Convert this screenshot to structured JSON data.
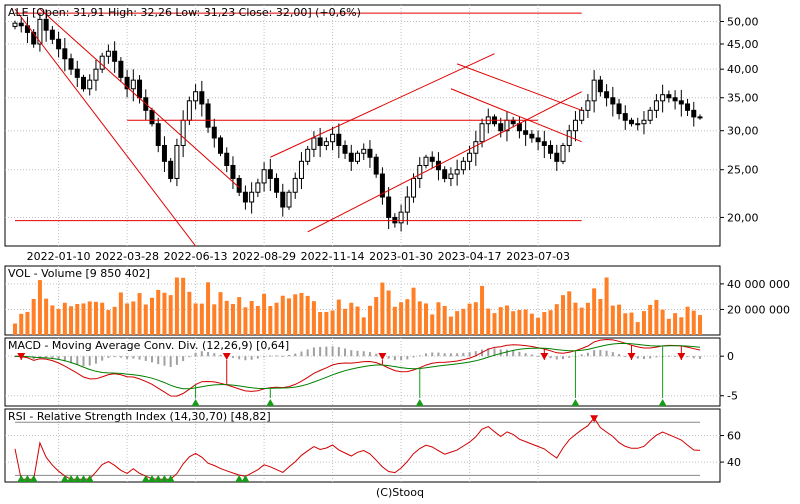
{
  "footer": "(C)Stooq",
  "colors": {
    "frame": "#000000",
    "grid": "#c0c0c0",
    "trend": "#e00000",
    "candle_up": "#ffffff",
    "candle_down": "#000000",
    "volume": "#ff7f27",
    "macd": "#d00000",
    "signal": "#008000",
    "hist": "#a0a0a0",
    "rsi": "#d00000",
    "marker_down": "#e00000",
    "marker_up": "#1a9a1a"
  },
  "chart_data": [
    {
      "type": "candlestick",
      "title": "ALE [Open: 31,91  High: 32,26  Low: 31,23  Close: 32,00] (+0,6%)",
      "x_tick_labels": [
        "2022-01-10",
        "2022-03-28",
        "2022-06-13",
        "2022-08-29",
        "2022-11-14",
        "2023-01-30",
        "2023-04-17",
        "2023-07-03"
      ],
      "y_tick_labels": [
        "50,00",
        "45,00",
        "40,00",
        "35,00",
        "30,00",
        "25,00",
        "20,00"
      ],
      "y_ticks": [
        50,
        45,
        40,
        35,
        30,
        25,
        20
      ],
      "ylim": [
        17.5,
        54
      ],
      "scale": "log",
      "last": {
        "open": 31.91,
        "high": 32.26,
        "low": 31.23,
        "close": 32.0,
        "change_pct": 0.6
      },
      "weekly_closes": [
        49.6,
        49.0,
        47.5,
        45.0,
        50.5,
        48.0,
        46.0,
        44.0,
        42.0,
        40.0,
        38.5,
        36.5,
        38.0,
        40.0,
        42.5,
        43.5,
        41.5,
        38.5,
        36.5,
        38.0,
        35.0,
        33.0,
        31.0,
        28.0,
        26.0,
        24.0,
        28.0,
        31.5,
        34.5,
        36.0,
        34.0,
        30.5,
        29.0,
        27.0,
        25.5,
        24.0,
        22.5,
        21.5,
        22.5,
        23.5,
        25.0,
        24.0,
        22.5,
        21.0,
        22.5,
        24.0,
        26.0,
        27.5,
        29.0,
        28.0,
        28.5,
        29.5,
        28.0,
        27.0,
        26.0,
        27.0,
        27.5,
        26.5,
        24.5,
        22.0,
        20.0,
        19.5,
        20.5,
        22.0,
        24.0,
        25.5,
        26.5,
        26.0,
        25.0,
        24.0,
        24.5,
        25.0,
        26.0,
        27.0,
        28.5,
        31.0,
        32.0,
        31.0,
        30.0,
        31.5,
        31.0,
        30.0,
        29.5,
        29.0,
        28.5,
        28.0,
        27.0,
        26.0,
        28.0,
        30.0,
        31.5,
        33.0,
        34.5,
        38.0,
        36.0,
        35.0,
        34.0,
        32.5,
        31.5,
        31.0,
        31.0,
        31.5,
        33.0,
        34.5,
        35.5,
        35.0,
        34.5,
        34.0,
        33.0,
        32.0,
        32.0
      ],
      "trendlines": [
        {
          "from": [
            "2021-11-22",
            53.0
          ],
          "to": [
            "2022-06-13",
            17.5
          ]
        },
        {
          "from": [
            "2021-12-20",
            53.0
          ],
          "to": [
            "2022-08-01",
            23.0
          ]
        },
        {
          "from": [
            "2022-03-28",
            31.5
          ],
          "to": [
            "2023-07-03",
            31.5
          ]
        },
        {
          "from": [
            "2021-11-22",
            52.0
          ],
          "to": [
            "2023-08-21",
            52.0
          ]
        },
        {
          "from": [
            "2021-11-22",
            19.7
          ],
          "to": [
            "2023-08-21",
            19.7
          ]
        },
        {
          "from": [
            "2022-09-05",
            26.5
          ],
          "to": [
            "2023-05-15",
            43.0
          ]
        },
        {
          "from": [
            "2022-10-17",
            18.7
          ],
          "to": [
            "2023-08-21",
            36.0
          ]
        },
        {
          "from": [
            "2023-04-03",
            41.0
          ],
          "to": [
            "2023-08-21",
            33.0
          ]
        },
        {
          "from": [
            "2023-03-27",
            36.5
          ],
          "to": [
            "2023-08-21",
            28.5
          ]
        }
      ]
    },
    {
      "type": "bar",
      "title": "VOL - Volume [9 850 402]",
      "y_tick_labels": [
        "40 000 000",
        "20 000 000"
      ],
      "y_ticks": [
        40000000,
        20000000
      ],
      "ylim": [
        0,
        54000000
      ],
      "peak": 45000000
    },
    {
      "type": "line",
      "title": "MACD - Moving Average Conv. Div. (12,26,9) [0,64]",
      "y_tick_labels": [
        "0",
        "-5"
      ],
      "y_ticks": [
        0,
        -5
      ],
      "ylim": [
        -6.3,
        2.3
      ],
      "last": 0.64
    },
    {
      "type": "line",
      "title": "RSI - Relative Strength Index (14,30,70) [48,82]",
      "y_tick_labels": [
        "60",
        "40"
      ],
      "y_ticks": [
        60,
        40
      ],
      "ylim": [
        25,
        80
      ],
      "levels": [
        30,
        70
      ],
      "last": 48.82
    }
  ]
}
